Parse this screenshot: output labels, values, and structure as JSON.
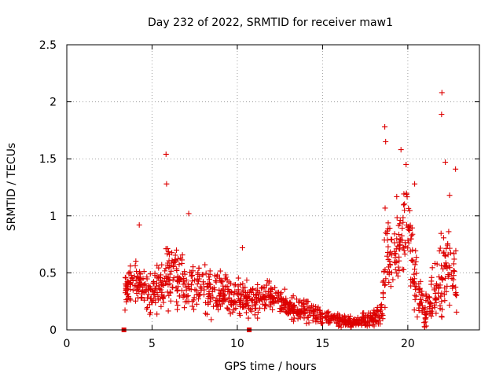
{
  "chart_data": {
    "type": "scatter",
    "title": "Day 232 of 2022, SRMTID for receiver maw1",
    "xlabel": "GPS time / hours",
    "ylabel": "SRMTID / TECUs",
    "xlim": [
      0,
      24.2
    ],
    "ylim": [
      0,
      2.5
    ],
    "x_ticks": [
      0,
      5,
      10,
      15,
      20
    ],
    "x_tick_labels": [
      "0",
      "5",
      "10",
      "15",
      "20"
    ],
    "y_ticks": [
      0,
      0.5,
      1,
      1.5,
      2,
      2.5
    ],
    "y_tick_labels": [
      "0",
      "0.5",
      "1",
      "1.5",
      "2",
      "2.5"
    ],
    "grid": true,
    "marker": "+",
    "color": "#dd0000",
    "outliers": [
      {
        "x": 5.82,
        "y": 1.54
      },
      {
        "x": 5.85,
        "y": 1.28
      },
      {
        "x": 7.15,
        "y": 1.02
      },
      {
        "x": 4.25,
        "y": 0.92
      },
      {
        "x": 10.3,
        "y": 0.72
      },
      {
        "x": 18.65,
        "y": 1.78
      },
      {
        "x": 18.7,
        "y": 1.65
      },
      {
        "x": 19.6,
        "y": 1.58
      },
      {
        "x": 19.9,
        "y": 1.45
      },
      {
        "x": 22.0,
        "y": 2.08
      },
      {
        "x": 21.98,
        "y": 1.89
      },
      {
        "x": 22.2,
        "y": 1.47
      },
      {
        "x": 22.8,
        "y": 1.41
      },
      {
        "x": 20.4,
        "y": 1.28
      },
      {
        "x": 22.45,
        "y": 1.18
      }
    ],
    "baseline_markers": [
      {
        "x": 3.35,
        "y": 0
      },
      {
        "x": 10.7,
        "y": 0
      }
    ],
    "series_profile": [
      {
        "x": 3.4,
        "y": 0.35,
        "spread": 0.12
      },
      {
        "x": 4.0,
        "y": 0.42,
        "spread": 0.18
      },
      {
        "x": 5.0,
        "y": 0.3,
        "spread": 0.15
      },
      {
        "x": 6.0,
        "y": 0.48,
        "spread": 0.25
      },
      {
        "x": 7.0,
        "y": 0.4,
        "spread": 0.2
      },
      {
        "x": 8.0,
        "y": 0.35,
        "spread": 0.18
      },
      {
        "x": 9.0,
        "y": 0.3,
        "spread": 0.15
      },
      {
        "x": 10.0,
        "y": 0.28,
        "spread": 0.15
      },
      {
        "x": 11.0,
        "y": 0.25,
        "spread": 0.12
      },
      {
        "x": 12.0,
        "y": 0.3,
        "spread": 0.12
      },
      {
        "x": 13.0,
        "y": 0.2,
        "spread": 0.08
      },
      {
        "x": 14.0,
        "y": 0.17,
        "spread": 0.08
      },
      {
        "x": 15.0,
        "y": 0.12,
        "spread": 0.06
      },
      {
        "x": 16.0,
        "y": 0.08,
        "spread": 0.05
      },
      {
        "x": 17.0,
        "y": 0.07,
        "spread": 0.04
      },
      {
        "x": 18.0,
        "y": 0.1,
        "spread": 0.06
      },
      {
        "x": 18.5,
        "y": 0.15,
        "spread": 0.08
      },
      {
        "x": 18.7,
        "y": 0.7,
        "spread": 0.35
      },
      {
        "x": 19.0,
        "y": 0.65,
        "spread": 0.3
      },
      {
        "x": 19.5,
        "y": 0.85,
        "spread": 0.35
      },
      {
        "x": 20.0,
        "y": 0.9,
        "spread": 0.3
      },
      {
        "x": 20.5,
        "y": 0.35,
        "spread": 0.25
      },
      {
        "x": 21.0,
        "y": 0.15,
        "spread": 0.12
      },
      {
        "x": 21.5,
        "y": 0.3,
        "spread": 0.2
      },
      {
        "x": 22.0,
        "y": 0.45,
        "spread": 0.3
      },
      {
        "x": 22.5,
        "y": 0.55,
        "spread": 0.35
      },
      {
        "x": 22.9,
        "y": 0.35,
        "spread": 0.2
      }
    ]
  }
}
